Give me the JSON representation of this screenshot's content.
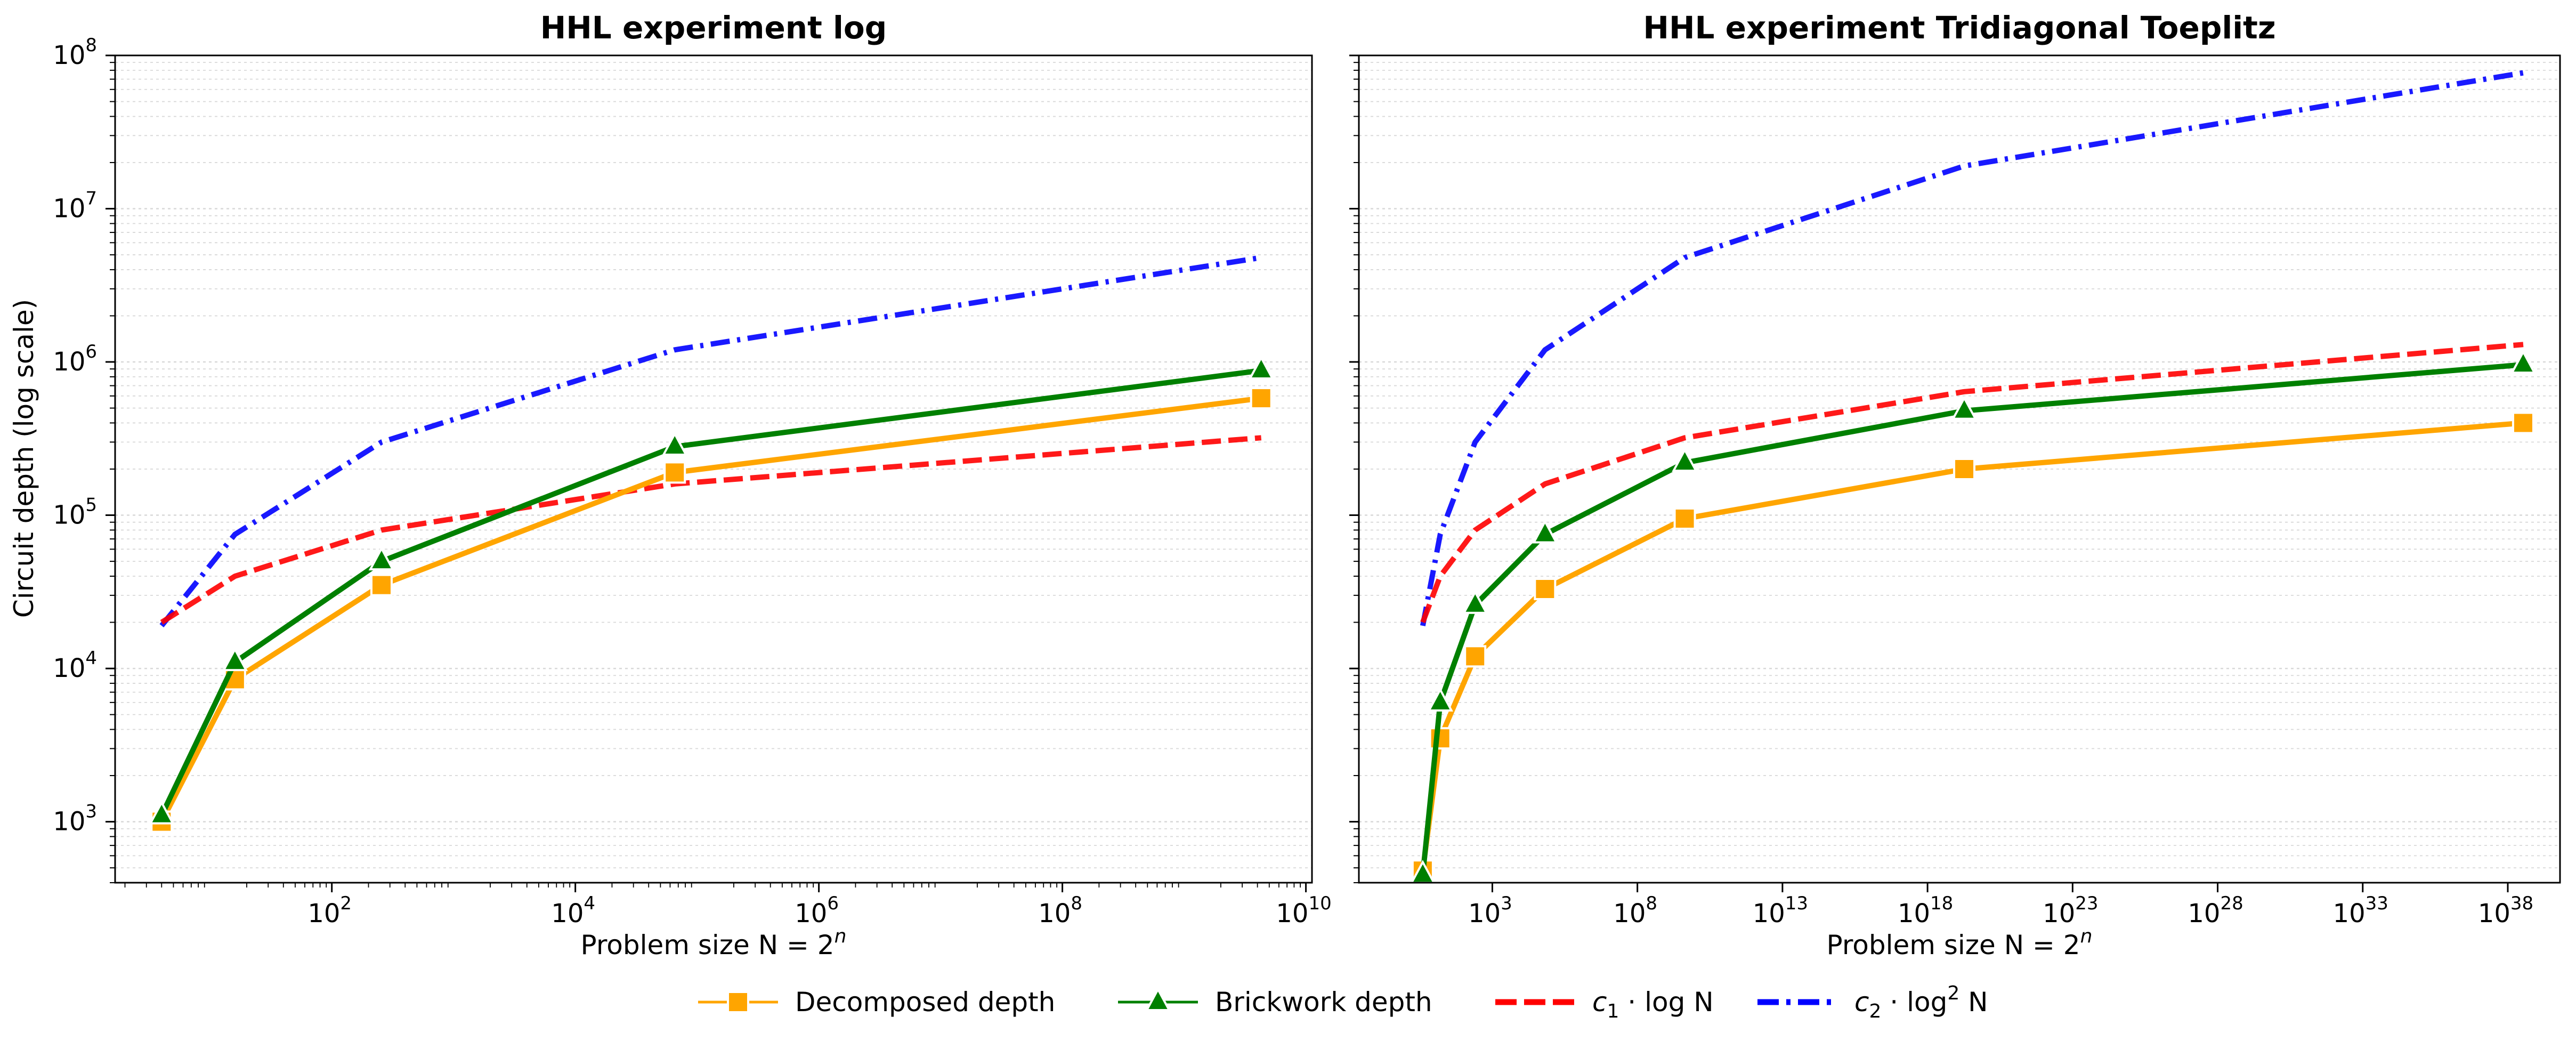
{
  "ylabel": "Circuit depth (log scale)",
  "legend_items": [
    {
      "key": "decomposed",
      "label": "Decomposed depth",
      "color": "#FFA500",
      "dash": "solid",
      "marker": "square"
    },
    {
      "key": "brickwork",
      "label": "Brickwork depth",
      "color": "#008000",
      "dash": "solid",
      "marker": "triangle"
    },
    {
      "key": "c1",
      "label_prefix": "c",
      "label_sub": "1",
      "label_suffix": " · log N",
      "color": "#FF0000",
      "dash": "dashed",
      "marker": "none"
    },
    {
      "key": "c2",
      "label_prefix": "c",
      "label_sub": "2",
      "label_mid": " · log",
      "label_sup": "2",
      "label_suffix": " N",
      "color": "#0000FF",
      "dash": "dashdot",
      "marker": "none"
    }
  ],
  "chart_data": [
    {
      "type": "line",
      "title": "HHL experiment log",
      "xlabel_text": "Problem size N = 2",
      "xlabel_sup": "n",
      "x_scale": "log",
      "y_scale": "log",
      "ylim": [
        400,
        100000000
      ],
      "x_ticks": [
        {
          "exp": 2
        },
        {
          "exp": 4
        },
        {
          "exp": 6
        },
        {
          "exp": 8
        },
        {
          "exp": 10
        }
      ],
      "y_ticks": [
        {
          "exp": 3
        },
        {
          "exp": 4
        },
        {
          "exp": 5
        },
        {
          "exp": 6
        },
        {
          "exp": 7
        },
        {
          "exp": 8
        }
      ],
      "x": [
        4,
        16,
        256,
        65536,
        4294967296
      ],
      "series": [
        {
          "key": "decomposed",
          "values": [
            1000,
            8500,
            35000,
            190000,
            580000
          ]
        },
        {
          "key": "brickwork",
          "values": [
            1100,
            11000,
            50000,
            280000,
            880000
          ]
        },
        {
          "key": "c1",
          "values": [
            20000,
            40000,
            80000,
            160000,
            320000
          ]
        },
        {
          "key": "c2",
          "values": [
            19000,
            75000,
            300000,
            1200000,
            4800000
          ]
        }
      ]
    },
    {
      "type": "line",
      "title": "HHL experiment Tridiagonal Toeplitz",
      "xlabel_text": "Problem size N = 2",
      "xlabel_sup": "n",
      "x_scale": "log",
      "y_scale": "log",
      "ylim": [
        400,
        100000000
      ],
      "x_ticks": [
        {
          "exp": 3
        },
        {
          "exp": 8
        },
        {
          "exp": 13
        },
        {
          "exp": 18
        },
        {
          "exp": 23
        },
        {
          "exp": 28
        },
        {
          "exp": 33
        },
        {
          "exp": 38
        }
      ],
      "y_ticks": [],
      "x": [
        4,
        16,
        256,
        65536,
        4294967296,
        18446744073709552000,
        3.402823669209385e+38
      ],
      "series": [
        {
          "key": "decomposed",
          "values": [
            480,
            3500,
            12000,
            33000,
            95000,
            200000,
            400000
          ]
        },
        {
          "key": "brickwork",
          "values": [
            450,
            6000,
            26000,
            75000,
            220000,
            480000,
            960000
          ]
        },
        {
          "key": "c1",
          "values": [
            20000,
            40000,
            80000,
            160000,
            320000,
            640000,
            1300000
          ]
        },
        {
          "key": "c2",
          "values": [
            19000,
            75000,
            300000,
            1200000,
            4800000,
            19000000,
            77000000
          ]
        }
      ]
    }
  ]
}
